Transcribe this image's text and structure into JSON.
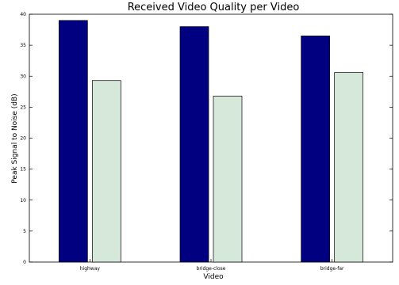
{
  "chart_data": {
    "type": "bar",
    "title": "Received Video Quality per Video",
    "xlabel": "Video",
    "ylabel": "Peak Signal to Noise (dB)",
    "categories": [
      "highway",
      "bridge-close",
      "bridge-far"
    ],
    "series": [
      {
        "values": [
          39.0,
          38.0,
          36.5
        ],
        "color": "#000080"
      },
      {
        "values": [
          29.3,
          26.8,
          30.6
        ],
        "color": "#d6e8da"
      }
    ],
    "ylim": [
      0,
      40
    ],
    "yticks": [
      0,
      5,
      10,
      15,
      20,
      25,
      30,
      35,
      40
    ],
    "grid": false,
    "legend": "none"
  }
}
